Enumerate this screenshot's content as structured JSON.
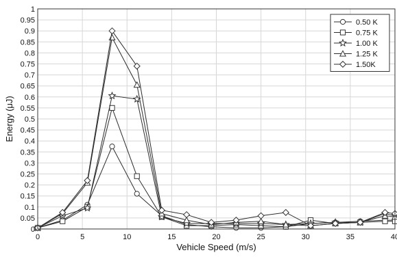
{
  "chart_data": {
    "type": "line",
    "title": "",
    "xlabel": "Vehicle Speed (m/s)",
    "ylabel": "Energy (μJ)",
    "xlim": [
      0,
      40
    ],
    "ylim": [
      0,
      1
    ],
    "grid": true,
    "legend_position": "top-right",
    "x_ticks": [
      "0",
      "5",
      "10",
      "15",
      "20",
      "25",
      "30",
      "35",
      "40"
    ],
    "y_ticks": [
      "0",
      "0.05",
      "0.1",
      "0.15",
      "0.2",
      "0.25",
      "0.3",
      "0.35",
      "0.4",
      "0.45",
      "0.5",
      "0.55",
      "0.6",
      "0.65",
      "0.7",
      "0.75",
      "0.8",
      "0.85",
      "0.9",
      "0.95",
      "1"
    ],
    "x": [
      0,
      2.78,
      5.56,
      8.33,
      11.11,
      13.89,
      16.67,
      19.44,
      22.22,
      25,
      27.78,
      30.56,
      33.33,
      36.11,
      38.89,
      40
    ],
    "series": [
      {
        "name": "0.50 K",
        "marker": "circle",
        "values": [
          0.005,
          0.04,
          0.11,
          0.375,
          0.16,
          0.06,
          0.02,
          0.01,
          0.005,
          0.005,
          0.01,
          0.025,
          0.03,
          0.035,
          0.04,
          0.04
        ]
      },
      {
        "name": "0.75 K",
        "marker": "square",
        "values": [
          0.005,
          0.035,
          0.1,
          0.55,
          0.24,
          0.055,
          0.015,
          0.015,
          0.02,
          0.015,
          0.01,
          0.04,
          0.025,
          0.03,
          0.035,
          0.035
        ]
      },
      {
        "name": "1.00 K",
        "marker": "star",
        "values": [
          0.005,
          0.06,
          0.095,
          0.605,
          0.59,
          0.055,
          0.025,
          0.025,
          0.025,
          0.025,
          0.02,
          0.025,
          0.03,
          0.03,
          0.07,
          0.06
        ]
      },
      {
        "name": "1.25 K",
        "marker": "triangle",
        "values": [
          0.005,
          0.07,
          0.21,
          0.87,
          0.655,
          0.07,
          0.04,
          0.02,
          0.03,
          0.035,
          0.02,
          0.015,
          0.025,
          0.03,
          0.06,
          0.055
        ]
      },
      {
        "name": "1.50K",
        "marker": "diamond",
        "values": [
          0.005,
          0.075,
          0.22,
          0.9,
          0.74,
          0.085,
          0.065,
          0.03,
          0.04,
          0.06,
          0.075,
          0.015,
          0.025,
          0.03,
          0.075,
          0.07
        ]
      }
    ]
  }
}
